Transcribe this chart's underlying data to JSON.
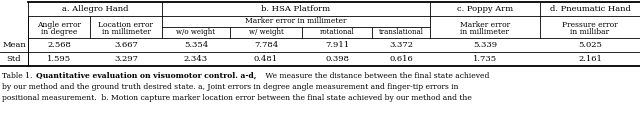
{
  "section_headers": [
    "a. Allegro Hand",
    "b. HSA Platform",
    "c. Poppy Arm",
    "d. Pneumatic Hand"
  ],
  "row_labels": [
    "Mean",
    "Std"
  ],
  "data": [
    [
      2.568,
      3.667,
      5.354,
      7.784,
      7.911,
      3.372,
      5.339,
      5.025
    ],
    [
      1.595,
      3.297,
      2.343,
      0.481,
      0.398,
      0.616,
      1.735,
      2.161
    ]
  ],
  "caption_label": "Table 1.",
  "caption_bold": "Quantitative evaluation on visuomotor control. a-d,",
  "caption_line1": " We measure the distance between the final state achieved",
  "caption_line2": "by our method and the ground truth desired state. a, Joint errors in degree angle measurement and finger-tip errors in",
  "caption_line3": "positional measurement.  b. Motion capture marker location error between the final state achieved by our method and the",
  "background_color": "#ffffff",
  "text_color": "#000000",
  "lw_thin": 0.6,
  "lw_thick": 1.3,
  "fs_header": 6.0,
  "fs_subheader": 5.5,
  "fs_data": 6.0,
  "fs_caption": 5.5
}
